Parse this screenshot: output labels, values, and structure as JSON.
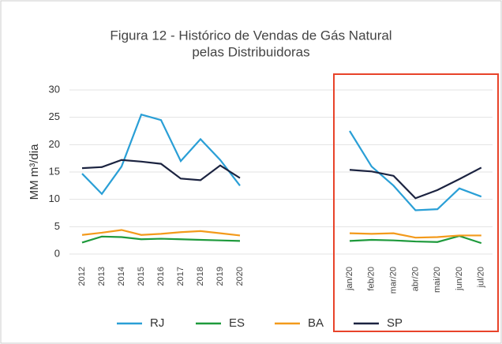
{
  "chart_data": {
    "type": "line",
    "title": [
      "Figura 12 - Histórico de Vendas de Gás Natural",
      "pelas Distribuidoras"
    ],
    "y_label": "MM m³/dia",
    "categories": [
      "2012",
      "2013",
      "2014",
      "2015",
      "2016",
      "2017",
      "2018",
      "2019",
      "2020",
      null,
      "jan/20",
      "feb/20",
      "mar/20",
      "abr/20",
      "mai/20",
      "jun/20",
      "jul/20"
    ],
    "series": [
      {
        "name": "RJ",
        "color": "#2a9fd6",
        "values": [
          14.7,
          11,
          16,
          25.5,
          24.5,
          17,
          21,
          17.2,
          12.5,
          null,
          22.5,
          16,
          12.5,
          8,
          8.2,
          12,
          10.5
        ]
      },
      {
        "name": "ES",
        "color": "#1e9a3c",
        "values": [
          2.1,
          3.2,
          3.1,
          2.7,
          2.8,
          2.7,
          2.6,
          2.5,
          2.4,
          null,
          2.4,
          2.6,
          2.5,
          2.3,
          2.2,
          3.3,
          2.0
        ]
      },
      {
        "name": "BA",
        "color": "#f39a1b",
        "values": [
          3.5,
          3.9,
          4.4,
          3.5,
          3.7,
          4.0,
          4.2,
          3.8,
          3.4,
          null,
          3.8,
          3.7,
          3.8,
          3.0,
          3.1,
          3.4,
          3.4
        ]
      },
      {
        "name": "SP",
        "color": "#1b2340",
        "values": [
          15.7,
          15.9,
          17.2,
          16.9,
          16.5,
          13.8,
          13.5,
          16.2,
          13.9,
          null,
          15.4,
          15.1,
          14.3,
          10.2,
          11.7,
          13.7,
          15.8
        ]
      }
    ],
    "ylim": [
      0,
      30
    ],
    "yticks": [
      0,
      5,
      10,
      15,
      20,
      25,
      30
    ],
    "grid": true,
    "highlight_color": "#e8432a",
    "legend": "bottom"
  }
}
